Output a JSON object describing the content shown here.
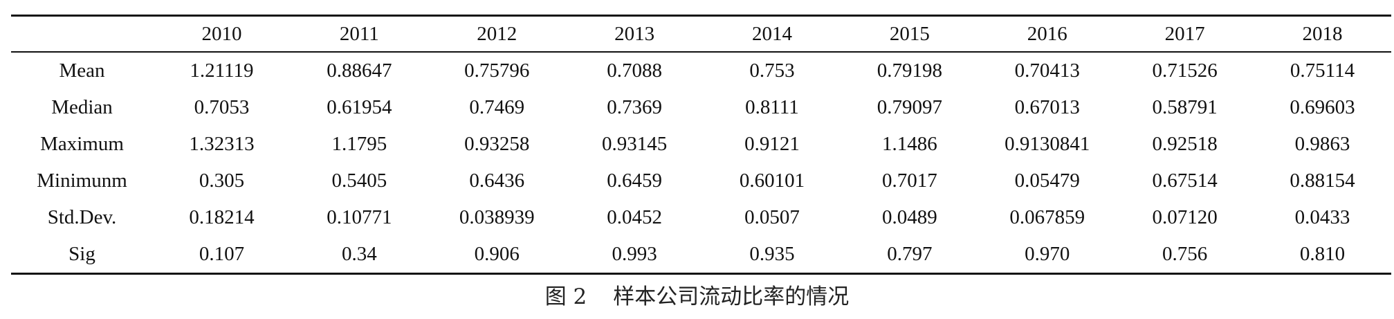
{
  "table": {
    "corner": "",
    "columns": [
      "2010",
      "2011",
      "2012",
      "2013",
      "2014",
      "2015",
      "2016",
      "2017",
      "2018"
    ],
    "rows": [
      {
        "label": "Mean",
        "values": [
          "1.21119",
          "0.88647",
          "0.75796",
          "0.7088",
          "0.753",
          "0.79198",
          "0.70413",
          "0.71526",
          "0.75114"
        ]
      },
      {
        "label": "Median",
        "values": [
          "0.7053",
          "0.61954",
          "0.7469",
          "0.7369",
          "0.8111",
          "0.79097",
          "0.67013",
          "0.58791",
          "0.69603"
        ]
      },
      {
        "label": "Maximum",
        "values": [
          "1.32313",
          "1.1795",
          "0.93258",
          "0.93145",
          "0.9121",
          "1.1486",
          "0.9130841",
          "0.92518",
          "0.9863"
        ]
      },
      {
        "label": "Minimunm",
        "values": [
          "0.305",
          "0.5405",
          "0.6436",
          "0.6459",
          "0.60101",
          "0.7017",
          "0.05479",
          "0.67514",
          "0.88154"
        ]
      },
      {
        "label": "Std.Dev.",
        "values": [
          "0.18214",
          "0.10771",
          "0.038939",
          "0.0452",
          "0.0507",
          "0.0489",
          "0.067859",
          "0.07120",
          "0.0433"
        ]
      },
      {
        "label": "Sig",
        "values": [
          "0.107",
          "0.34",
          "0.906",
          "0.993",
          "0.935",
          "0.797",
          "0.970",
          "0.756",
          "0.810"
        ]
      }
    ]
  },
  "caption": {
    "number": "图 2",
    "text": "样本公司流动比率的情况"
  }
}
